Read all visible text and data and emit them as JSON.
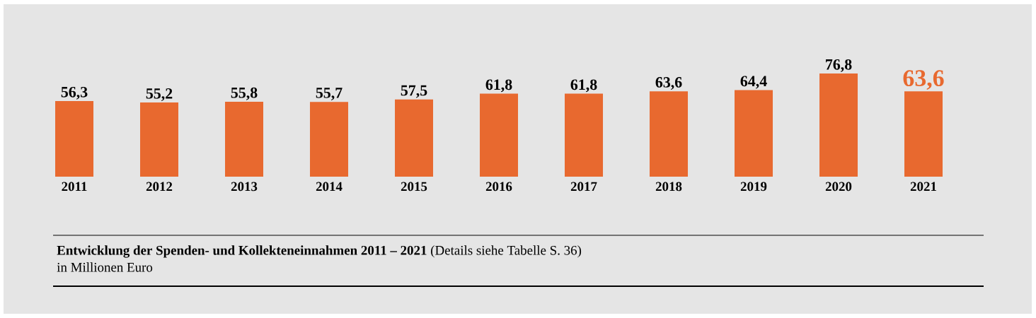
{
  "chart_data": {
    "type": "bar",
    "title": "**Entwicklung der Spenden- und Kollekteneinnahmen 2011 – 2021** (Details siehe Tabelle S. 36)",
    "subtitle": "in Millionen Euro",
    "categories": [
      "2011",
      "2012",
      "2013",
      "2014",
      "2015",
      "2016",
      "2017",
      "2018",
      "2019",
      "2020",
      "2021"
    ],
    "values": [
      56.3,
      55.2,
      55.8,
      55.7,
      57.5,
      61.8,
      61.8,
      63.6,
      64.4,
      76.8,
      63.6
    ],
    "value_labels": [
      "56,3",
      "55,2",
      "55,8",
      "55,7",
      "57,5",
      "61,8",
      "61,8",
      "63,6",
      "64,4",
      "76,8",
      "63,6"
    ],
    "color": "#e8692f"
  }
}
